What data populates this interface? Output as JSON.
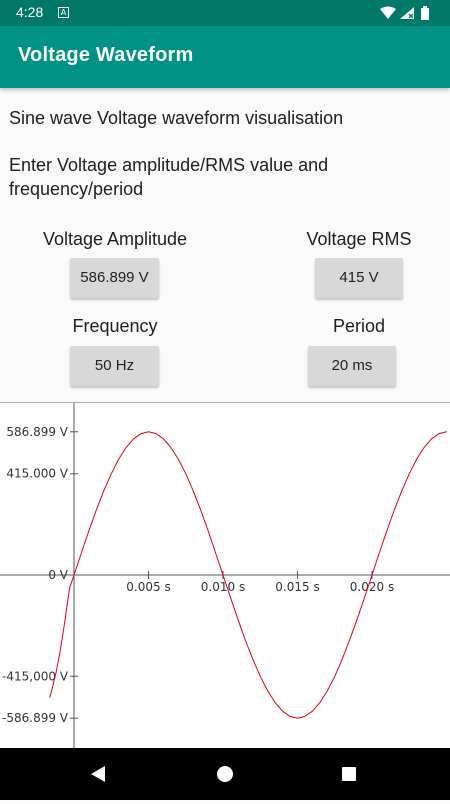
{
  "status": {
    "time": "4:28",
    "notification_badge": "A",
    "icons": [
      "wifi-icon",
      "signal-icon",
      "battery-icon"
    ]
  },
  "app_bar": {
    "title": "Voltage Waveform",
    "color": "#009384"
  },
  "content": {
    "intro": "Sine wave Voltage waveform visualisation",
    "instruction": "Enter Voltage amplitude/RMS value and frequency/period",
    "fields": {
      "amplitude": {
        "label": "Voltage Amplitude",
        "value": "586.899 V"
      },
      "rms": {
        "label": "Voltage RMS",
        "value": "415 V"
      },
      "frequency": {
        "label": "Frequency",
        "value": "50 Hz"
      },
      "period": {
        "label": "Period",
        "value": "20 ms"
      }
    }
  },
  "chart_data": {
    "type": "line",
    "y_ticks": [
      "586.899 V",
      "415.000 V",
      "0 V",
      "-415,000 V",
      "-586.899 V"
    ],
    "x_ticks": [
      "0.005 s",
      "0.010 s",
      "0.015 s",
      "0.020 s"
    ],
    "series": [
      {
        "color": "#e00000",
        "x": [
          -0.00163,
          -0.0015,
          -0.0012,
          -0.0009,
          -0.0006,
          -0.0003,
          0,
          0.0005,
          0.001,
          0.0015,
          0.002,
          0.0025,
          0.003,
          0.0035,
          0.004,
          0.0045,
          0.005,
          0.0055,
          0.006,
          0.0065,
          0.007,
          0.0075,
          0.008,
          0.0085,
          0.009,
          0.0095,
          0.01,
          0.0105,
          0.011,
          0.0115,
          0.012,
          0.0125,
          0.013,
          0.0135,
          0.014,
          0.0145,
          0.015,
          0.0155,
          0.016,
          0.0165,
          0.017,
          0.0175,
          0.018,
          0.0185,
          0.019,
          0.0195,
          0.02,
          0.0205,
          0.021,
          0.0215,
          0.022,
          0.0225,
          0.023,
          0.0235,
          0.024,
          0.0245,
          0.025,
          0.02502
        ],
        "y": [
          -502.4,
          -475.6,
          -398.6,
          -301.4,
          -183.4,
          -55.0,
          0.0,
          91.8,
          181.4,
          266.4,
          345.0,
          415.0,
          474.8,
          523.0,
          558.2,
          579.6,
          586.9,
          579.6,
          558.2,
          523.0,
          474.8,
          415.0,
          345.0,
          266.4,
          181.4,
          91.8,
          0.0,
          -91.8,
          -181.4,
          -266.4,
          -345.0,
          -415.0,
          -474.8,
          -523.0,
          -558.2,
          -579.6,
          -586.9,
          -579.6,
          -558.2,
          -523.0,
          -474.8,
          -415.0,
          -345.0,
          -266.4,
          -181.4,
          -91.8,
          0.0,
          91.8,
          181.4,
          266.4,
          345.0,
          415.0,
          474.8,
          523.0,
          558.2,
          579.6,
          586.9,
          586.9
        ]
      }
    ],
    "grid": false,
    "title": "",
    "xlabel": "",
    "ylabel": ""
  },
  "nav": {
    "buttons": [
      "back-button",
      "home-button",
      "recents-button"
    ]
  }
}
